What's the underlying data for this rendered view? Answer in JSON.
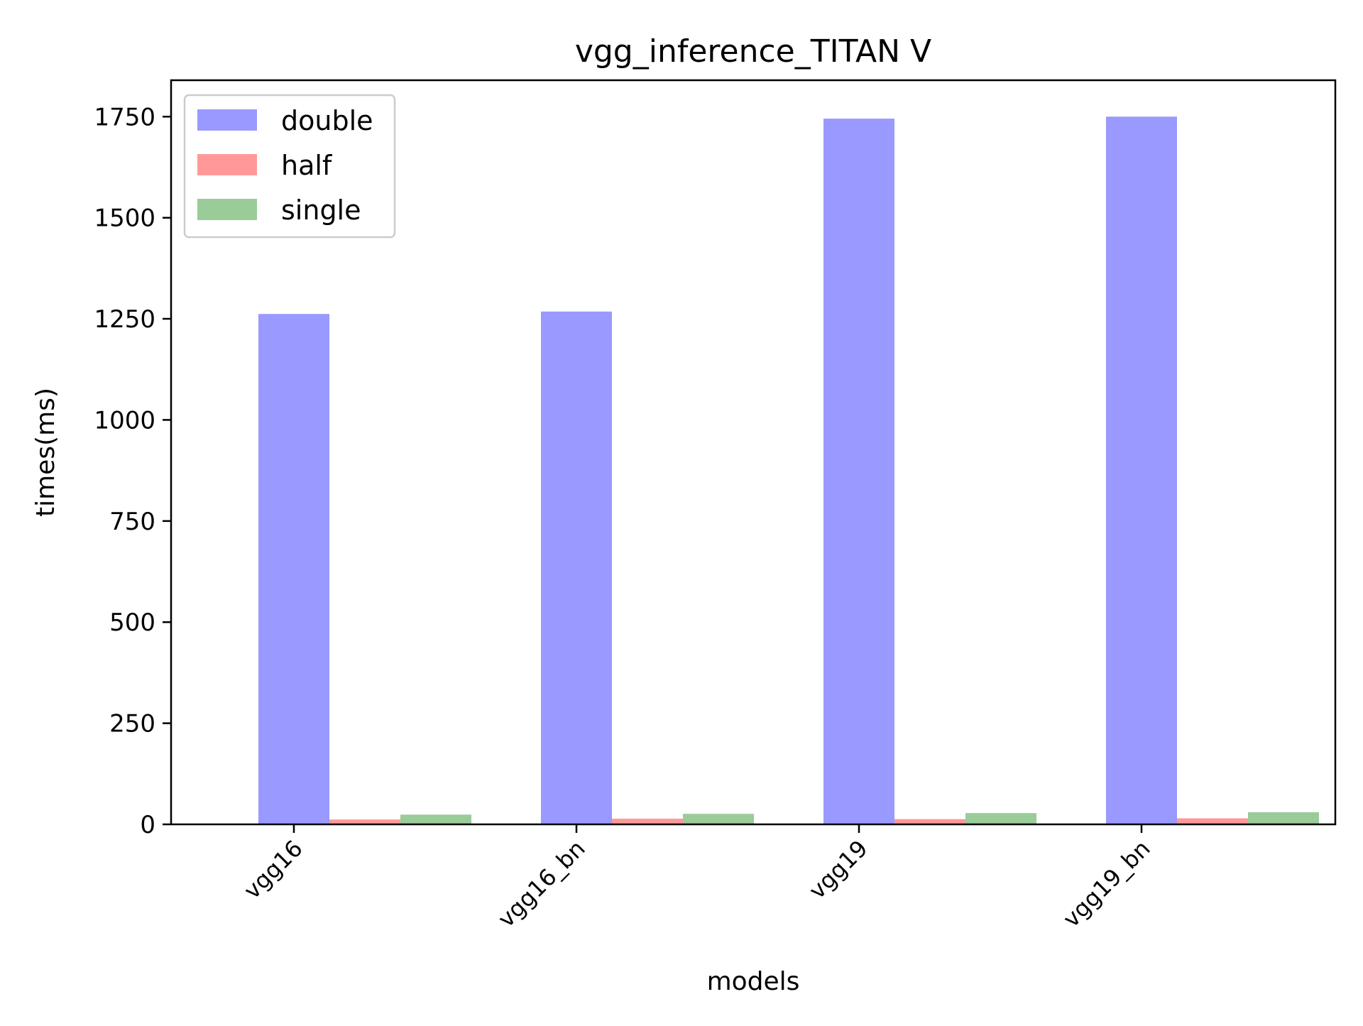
{
  "chart_data": {
    "type": "bar",
    "title": "vgg_inference_TITAN V",
    "xlabel": "models",
    "ylabel": "times(ms)",
    "categories": [
      "vgg16",
      "vgg16_bn",
      "vgg19",
      "vgg19_bn"
    ],
    "series": [
      {
        "name": "double",
        "color": "#9999ff",
        "values": [
          1262,
          1268,
          1745,
          1750
        ]
      },
      {
        "name": "half",
        "color": "#ff9999",
        "values": [
          12,
          14,
          13,
          15
        ]
      },
      {
        "name": "single",
        "color": "#99cc99",
        "values": [
          24,
          26,
          28,
          30
        ]
      }
    ],
    "ylim": [
      0,
      1840
    ],
    "yticks": [
      0,
      250,
      500,
      750,
      1000,
      1250,
      1500,
      1750
    ],
    "legend": {
      "position": "top-left"
    },
    "grid": false
  }
}
